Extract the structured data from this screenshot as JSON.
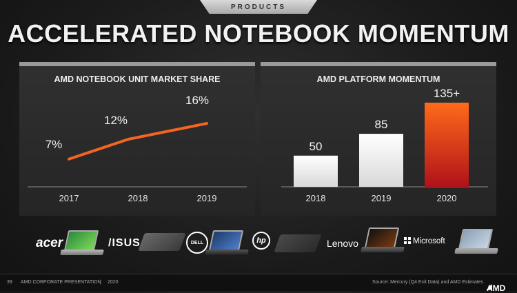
{
  "header": {
    "section": "PRODUCTS",
    "title": "ACCELERATED NOTEBOOK MOMENTUM"
  },
  "chart_data": [
    {
      "type": "line",
      "title": "AMD NOTEBOOK UNIT MARKET SHARE",
      "categories": [
        "2017",
        "2018",
        "2019"
      ],
      "values": [
        7,
        12,
        16
      ],
      "data_labels": [
        "7%",
        "12%",
        "16%"
      ],
      "ylim": [
        0,
        20
      ],
      "grid": false,
      "line_color": "#f26522"
    },
    {
      "type": "bar",
      "title": "AMD PLATFORM MOMENTUM",
      "categories": [
        "2018",
        "2019",
        "2020"
      ],
      "values": [
        50,
        85,
        135
      ],
      "data_labels": [
        "50",
        "85",
        "135+"
      ],
      "ylim": [
        0,
        150
      ],
      "grid": false,
      "bar_colors": [
        "#f0f0f0",
        "#f0f0f0",
        "orange-red gradient"
      ]
    }
  ],
  "partners": {
    "brands": [
      "acer",
      "/ISUS",
      "DELL",
      "hp",
      "Lenovo",
      "Microsoft"
    ]
  },
  "footer": {
    "page": "39",
    "presentation": "AMD CORPORATE PRESENTATION",
    "separator": "|",
    "year": "2020",
    "source": "Source: Mercury (Q4 Exit Data) and AMD Estimates",
    "logo": "AMD"
  },
  "colors": {
    "accent_orange": "#f26522",
    "background": "#1f1f1f",
    "panel": "#2b2b2b"
  }
}
